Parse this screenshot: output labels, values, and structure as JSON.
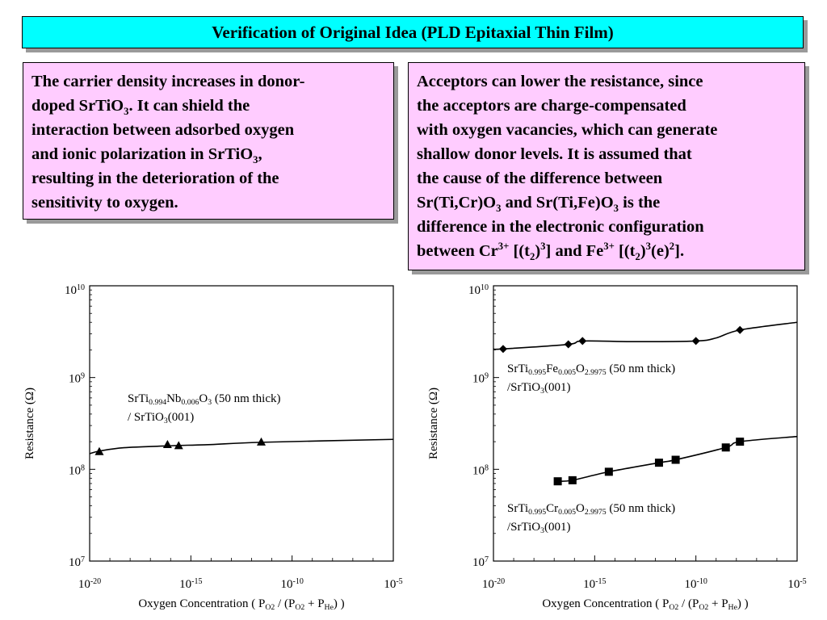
{
  "title": "Verification of Original Idea (PLD Epitaxial Thin Film)",
  "left_box": {
    "lines": [
      [
        "The carrier density increases in donor-"
      ],
      [
        "doped SrTiO",
        {
          "sub": "3"
        },
        ".  It can shield the"
      ],
      [
        "interaction between adsorbed oxygen"
      ],
      [
        "and ionic polarization in SrTiO",
        {
          "sub": "3"
        },
        ","
      ],
      [
        "resulting in the deterioration of the"
      ],
      [
        "sensitivity to oxygen."
      ]
    ]
  },
  "right_box": {
    "lines": [
      [
        "Acceptors can lower the resistance, since"
      ],
      [
        "the acceptors are charge-compensated"
      ],
      [
        "with oxygen vacancies, which can generate"
      ],
      [
        "shallow donor levels.  It is assumed that"
      ],
      [
        "the cause of the difference between"
      ],
      [
        "Sr(Ti,Cr)O",
        {
          "sub": "3"
        },
        " and Sr(Ti,Fe)O",
        {
          "sub": "3"
        },
        " is the"
      ],
      [
        "difference in the electronic configuration"
      ],
      [
        "between Cr",
        {
          "sup": "3+"
        },
        " [(t",
        {
          "sub": "2"
        },
        ")",
        {
          "sup": "3"
        },
        "] and Fe",
        {
          "sup": "3+"
        },
        " [(t",
        {
          "sub": "2"
        },
        ")",
        {
          "sup": "3"
        },
        "(e)",
        {
          "sup": "2"
        },
        "]."
      ]
    ]
  },
  "chart_data": [
    {
      "type": "line",
      "x_scale": "log",
      "y_scale": "log",
      "xlim": [
        1e-20,
        1e-05
      ],
      "ylim": [
        10000000.0,
        10000000000.0
      ],
      "x_ticks": [
        {
          "base": "10",
          "exp": "-20"
        },
        {
          "base": "10",
          "exp": "-15"
        },
        {
          "base": "10",
          "exp": "-10"
        },
        {
          "base": "10",
          "exp": "-5"
        }
      ],
      "y_ticks": [
        {
          "base": "10",
          "exp": "10"
        },
        {
          "base": "10",
          "exp": "9"
        },
        {
          "base": "10",
          "exp": "8"
        },
        {
          "base": "10",
          "exp": "7"
        }
      ],
      "ylabel": "Resistance (Ω)",
      "xlabel": [
        {
          "t": "Oxygen  Concentration ( P"
        },
        {
          "sub": "O2"
        },
        {
          "t": " / (P"
        },
        {
          "sub": "O2"
        },
        {
          "t": " + P"
        },
        {
          "sub": "He"
        },
        {
          "t": ") )"
        }
      ],
      "series": [
        {
          "marker": "triangle",
          "points": [
            [
              3e-20,
              155000000.0
            ],
            [
              7e-17,
              185000000.0
            ],
            [
              2.5e-16,
              180000000.0
            ],
            [
              3e-12,
              197000000.0
            ]
          ],
          "trend": [
            [
              1e-20,
              148000000.0
            ],
            [
              3e-20,
              158000000.0
            ],
            [
              5e-19,
              172000000.0
            ],
            [
              7e-17,
              180000000.0
            ],
            [
              2.5e-16,
              182000000.0
            ],
            [
              1e-14,
              186000000.0
            ],
            [
              3e-12,
              197000000.0
            ],
            [
              1e-05,
              212000000.0
            ]
          ],
          "label": [
            [
              {
                "t": "SrTi"
              },
              {
                "sub": "0.994"
              },
              {
                "t": "Nb"
              },
              {
                "sub": "0.006"
              },
              {
                "t": "O"
              },
              {
                "sub": "3"
              },
              {
                "t": " (50 nm thick)"
              }
            ],
            [
              {
                "t": "/ SrTiO"
              },
              {
                "sub": "3"
              },
              {
                "t": "(001)"
              }
            ]
          ]
        }
      ]
    },
    {
      "type": "line",
      "x_scale": "log",
      "y_scale": "log",
      "xlim": [
        1e-20,
        1e-05
      ],
      "ylim": [
        10000000.0,
        10000000000.0
      ],
      "x_ticks": [
        {
          "base": "10",
          "exp": "-20"
        },
        {
          "base": "10",
          "exp": "-15"
        },
        {
          "base": "10",
          "exp": "-10"
        },
        {
          "base": "10",
          "exp": "-5"
        }
      ],
      "y_ticks": [
        {
          "base": "10",
          "exp": "10"
        },
        {
          "base": "10",
          "exp": "9"
        },
        {
          "base": "10",
          "exp": "8"
        },
        {
          "base": "10",
          "exp": "7"
        }
      ],
      "ylabel": "Resistance (Ω)",
      "xlabel": [
        {
          "t": "Oxygen  Concentration ( P"
        },
        {
          "sub": "O2"
        },
        {
          "t": " / (P"
        },
        {
          "sub": "O2"
        },
        {
          "t": " + P"
        },
        {
          "sub": "He"
        },
        {
          "t": ") )"
        }
      ],
      "series": [
        {
          "marker": "diamond",
          "points": [
            [
              3e-20,
              2050000000.0
            ],
            [
              5e-17,
              2300000000.0
            ],
            [
              2.5e-16,
              2500000000.0
            ],
            [
              1e-10,
              2500000000.0
            ],
            [
              1.5e-08,
              3300000000.0
            ]
          ],
          "trend": [
            [
              1e-20,
              2050000000.0
            ],
            [
              3e-20,
              2050000000.0
            ],
            [
              5e-17,
              2300000000.0
            ],
            [
              2.5e-16,
              2500000000.0
            ],
            [
              1e-13,
              2460000000.0
            ],
            [
              1e-10,
              2500000000.0
            ],
            [
              1e-09,
              2700000000.0
            ],
            [
              1.5e-08,
              3300000000.0
            ],
            [
              1e-05,
              4000000000.0
            ]
          ],
          "label": [
            [
              {
                "t": "SrTi"
              },
              {
                "sub": "0.995"
              },
              {
                "t": "Fe"
              },
              {
                "sub": "0.005"
              },
              {
                "t": "O"
              },
              {
                "sub": "2.9975"
              },
              {
                "t": " (50 nm thick)"
              }
            ],
            [
              {
                "t": "/SrTiO"
              },
              {
                "sub": "3"
              },
              {
                "t": "(001)"
              }
            ]
          ]
        },
        {
          "marker": "square",
          "points": [
            [
              1.5e-17,
              74000000.0
            ],
            [
              8e-17,
              76000000.0
            ],
            [
              5e-15,
              94000000.0
            ],
            [
              1.5e-12,
              118000000.0
            ],
            [
              1e-11,
              127000000.0
            ],
            [
              3e-09,
              173000000.0
            ],
            [
              1.5e-08,
              200000000.0
            ]
          ],
          "trend": [
            [
              1.5e-17,
              74000000.0
            ],
            [
              8e-17,
              76000000.0
            ],
            [
              5e-15,
              94000000.0
            ],
            [
              1.5e-12,
              118000000.0
            ],
            [
              1e-11,
              127000000.0
            ],
            [
              3e-09,
              173000000.0
            ],
            [
              1.5e-08,
              200000000.0
            ],
            [
              1e-05,
              228000000.0
            ]
          ],
          "label": [
            [
              {
                "t": "SrTi"
              },
              {
                "sub": "0.995"
              },
              {
                "t": "Cr"
              },
              {
                "sub": "0.005"
              },
              {
                "t": "O"
              },
              {
                "sub": "2.9975"
              },
              {
                "t": " (50 nm thick)"
              }
            ],
            [
              {
                "t": "/SrTiO"
              },
              {
                "sub": "3"
              },
              {
                "t": "(001)"
              }
            ]
          ]
        }
      ]
    }
  ]
}
